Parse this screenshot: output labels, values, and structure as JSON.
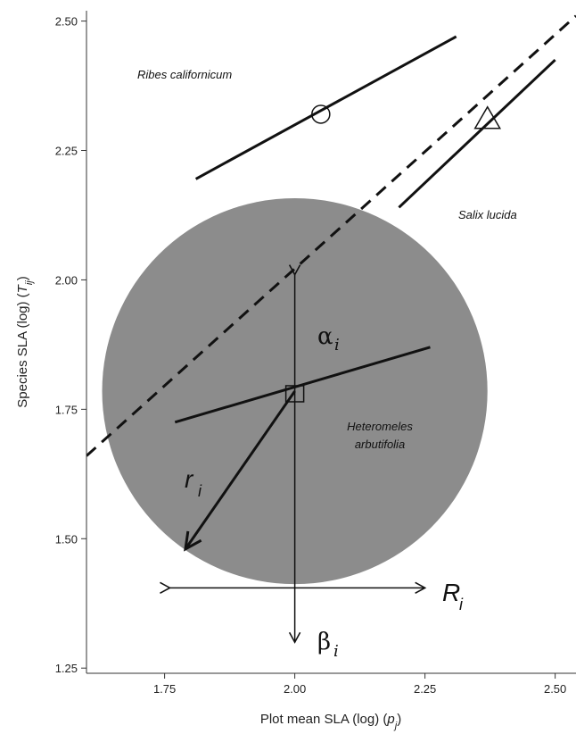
{
  "chart_data": {
    "type": "line",
    "xlabel": {
      "main": "Plot mean SLA (log) (",
      "var": "p",
      "sub": "j",
      "close": ")"
    },
    "ylabel": {
      "main": "Species SLA (log) (",
      "var": "T",
      "sub": "ij",
      "close": ")"
    },
    "xlim": [
      1.6,
      2.54
    ],
    "ylim": [
      1.24,
      2.52
    ],
    "x_ticks": [
      "1.75",
      "2.00",
      "2.25",
      "2.50"
    ],
    "y_ticks": [
      "1.25",
      "1.50",
      "1.75",
      "2.00",
      "2.25",
      "2.50"
    ],
    "grid": false,
    "lines": [
      {
        "name": "Ribes californicum",
        "style": "solid",
        "x": [
          1.81,
          2.31
        ],
        "y": [
          2.195,
          2.47
        ]
      },
      {
        "name": "Salix lucida",
        "style": "solid",
        "x": [
          2.2,
          2.5
        ],
        "y": [
          2.14,
          2.425
        ]
      },
      {
        "name": "Heteromeles arbutifolia",
        "style": "solid",
        "x": [
          1.77,
          2.26
        ],
        "y": [
          1.725,
          1.87
        ]
      },
      {
        "name": "1:1 line",
        "style": "dashed",
        "x": [
          1.6,
          2.54
        ],
        "y": [
          1.66,
          2.51
        ]
      }
    ],
    "points": [
      {
        "marker": "circle",
        "x": 2.05,
        "y": 2.32
      },
      {
        "marker": "triangle",
        "x": 2.37,
        "y": 2.31
      },
      {
        "marker": "square",
        "x": 2.0,
        "y": 1.78
      }
    ],
    "circle": {
      "center_x": 2.0,
      "center_y": 1.785,
      "radius_x": 0.37,
      "fill": "#8c8c8c"
    },
    "annotations": {
      "ribes": "Ribes californicum",
      "salix": "Salix lucida",
      "hetero_1": "Heteromeles",
      "hetero_2": "arbutifolia",
      "alpha": "α",
      "alpha_sub": "i",
      "beta": "β",
      "beta_sub": "i",
      "r": "r",
      "r_sub": "i",
      "R": "R",
      "R_sub": "i"
    },
    "arrows": {
      "vertical": {
        "x": 2.0,
        "y_from": 1.3,
        "y_to": 2.01
      },
      "horizontal": {
        "y": 1.405,
        "x_from": 1.76,
        "x_to": 2.25
      },
      "radius": {
        "x_from": 2.0,
        "y_from": 1.785,
        "x_to": 1.79,
        "y_to": 1.48
      }
    },
    "colors": {
      "circle_fill": "#8c8c8c",
      "ink": "#111111"
    }
  }
}
